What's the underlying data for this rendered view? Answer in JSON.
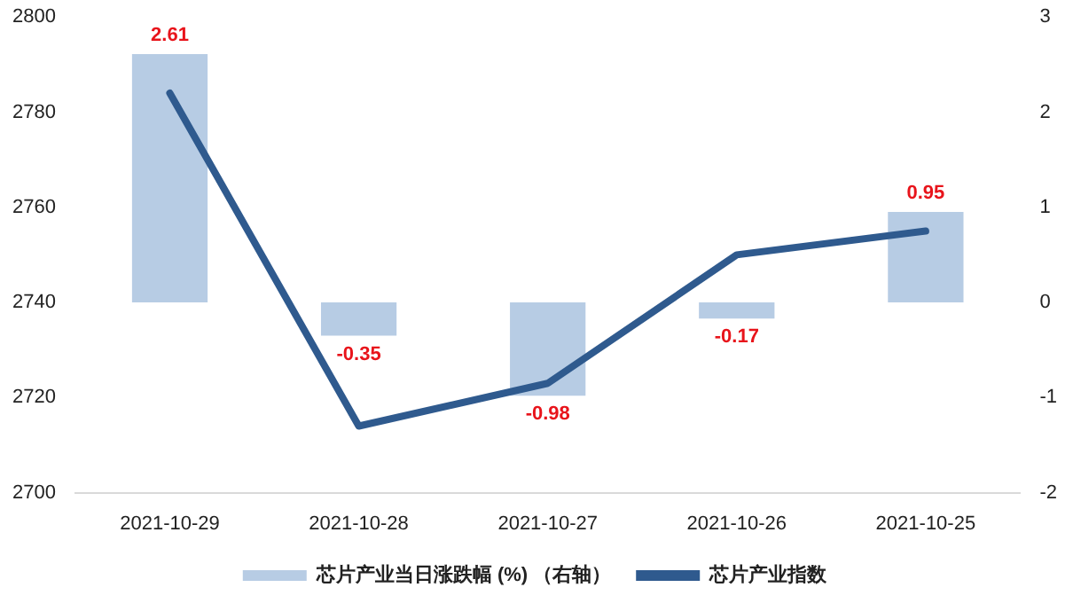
{
  "chart_data": {
    "type": "bar",
    "categories": [
      "2021-10-29",
      "2021-10-28",
      "2021-10-27",
      "2021-10-26",
      "2021-10-25"
    ],
    "series": [
      {
        "name": "芯片产业当日涨跌幅 (%) （右轴）",
        "axis": "y2",
        "color": "#b7cce4",
        "values": [
          2.61,
          -0.35,
          -0.98,
          -0.17,
          0.95
        ],
        "value_labels": [
          "2.61",
          "-0.35",
          "-0.98",
          "-0.17",
          "0.95"
        ]
      },
      {
        "name": "芯片产业指数",
        "type": "line",
        "color": "#2f5a8e",
        "values": [
          2784,
          2714,
          2723,
          2750,
          2755
        ]
      }
    ],
    "ylim": [
      2700,
      2800
    ],
    "yticks": [
      2700,
      2720,
      2740,
      2760,
      2780,
      2800
    ],
    "y2lim": [
      -2,
      3
    ],
    "y2ticks": [
      -2,
      -1,
      0,
      1,
      2,
      3
    ],
    "grid": false,
    "legend": "bottom",
    "marker": "none",
    "line_style": "solid"
  }
}
